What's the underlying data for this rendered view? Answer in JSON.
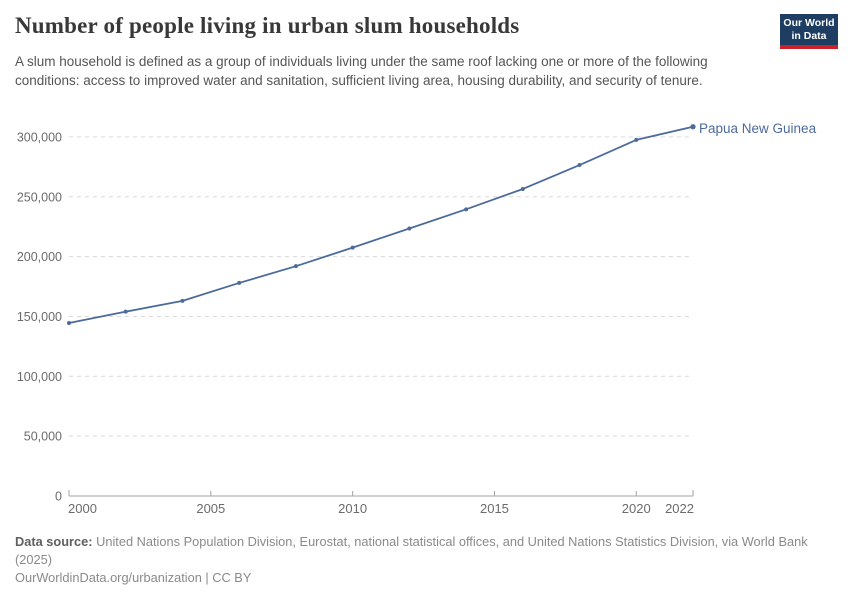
{
  "header": {
    "logo_line1": "Our World",
    "logo_line2": "in Data",
    "subtitle": "A slum household is defined as a group of individuals living under the same roof lacking one or more of the following conditions: access to improved water and sanitation, sufficient living area, housing durability, and security of tenure."
  },
  "chart_data": {
    "type": "line",
    "title": "Number of people living in urban slum households",
    "xlabel": "",
    "ylabel": "",
    "xlim": [
      2000,
      2022
    ],
    "ylim": [
      0,
      318000
    ],
    "grid": "horizontal dashed",
    "legend_position": "end-of-line label",
    "x": [
      2000,
      2002,
      2004,
      2006,
      2008,
      2010,
      2012,
      2014,
      2016,
      2018,
      2020,
      2022
    ],
    "series": [
      {
        "name": "Papua New Guinea",
        "color": "#4c6a9c",
        "values": [
          144500,
          154000,
          163000,
          178000,
          192000,
          207500,
          223500,
          239500,
          256500,
          276500,
          297500,
          308500
        ]
      }
    ],
    "xticks": [
      2000,
      2005,
      2010,
      2015,
      2020,
      2022
    ],
    "yticks": [
      [
        0,
        "0"
      ],
      [
        50000,
        "50,000"
      ],
      [
        100000,
        "100,000"
      ],
      [
        150000,
        "150,000"
      ],
      [
        200000,
        "200,000"
      ],
      [
        250000,
        "250,000"
      ],
      [
        300000,
        "300,000"
      ]
    ]
  },
  "footer": {
    "source_label": "Data source:",
    "source_text": "United Nations Population Division, Eurostat, national statistical offices, and United Nations Statistics Division, via World Bank (2025)",
    "note": "OurWorldinData.org/urbanization | CC BY"
  },
  "colors": {
    "line": "#4c6a9c",
    "gridline": "#d9d9d9",
    "axis": "#a3a3a3",
    "tick_text": "#6b6b6b",
    "logo_navy": "#1d3d63",
    "logo_red": "#cc2128"
  }
}
